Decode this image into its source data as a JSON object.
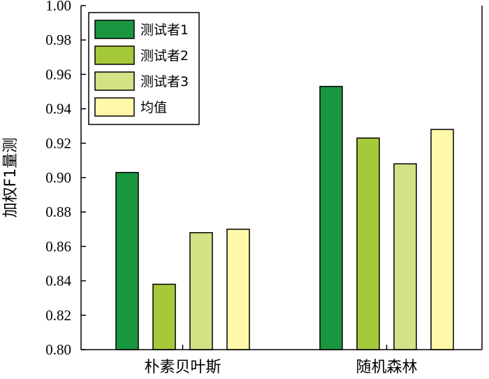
{
  "chart_data": {
    "type": "bar",
    "title": "",
    "xlabel": "",
    "ylabel": "加权F1量测",
    "ylim": [
      0.8,
      1.0
    ],
    "yticks": [
      "0.80",
      "0.82",
      "0.84",
      "0.86",
      "0.88",
      "0.90",
      "0.92",
      "0.94",
      "0.96",
      "0.98",
      "1.00"
    ],
    "categories": [
      "朴素贝叶斯",
      "随机森林"
    ],
    "grid": false,
    "legend_position": "top-left",
    "series": [
      {
        "name": "测试者1",
        "color": "#1a9641",
        "values": [
          0.903,
          0.953
        ]
      },
      {
        "name": "测试者2",
        "color": "#a6c93a",
        "values": [
          0.838,
          0.923
        ]
      },
      {
        "name": "测试者3",
        "color": "#d4e286",
        "values": [
          0.868,
          0.908
        ]
      },
      {
        "name": "均值",
        "color": "#fff8a8",
        "values": [
          0.87,
          0.928
        ]
      }
    ]
  }
}
